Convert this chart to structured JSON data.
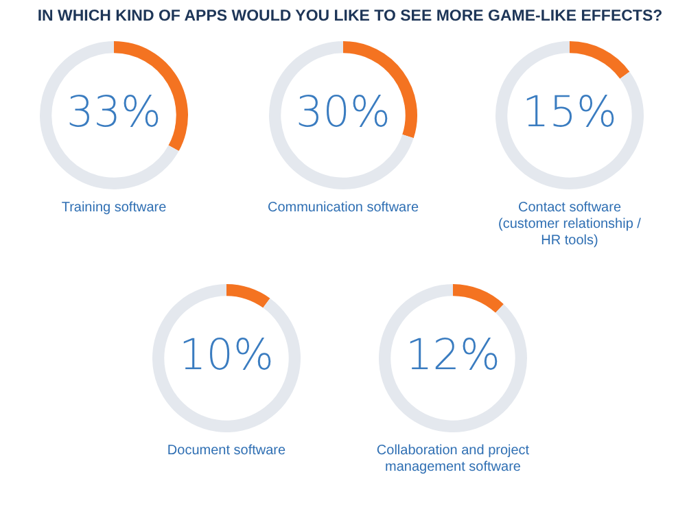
{
  "chart_data": [
    {
      "type": "other",
      "title": "IN WHICH KIND OF APPS WOULD YOU LIKE TO SEE MORE GAME-LIKE EFFECTS?"
    },
    {
      "type": "donut",
      "title": "Training software",
      "categories": [
        null,
        null
      ],
      "values": [
        33,
        67
      ],
      "colors": [
        "#f47321",
        "#e4e8ee"
      ],
      "value_labels": [
        "33%",
        null
      ]
    },
    {
      "type": "donut",
      "title": "Communication software",
      "categories": [
        null,
        null
      ],
      "values": [
        30,
        70
      ],
      "colors": [
        "#f47321",
        "#e4e8ee"
      ],
      "value_labels": [
        "30%",
        null
      ]
    },
    {
      "type": "donut",
      "title": "Contact software (customer relationship / HR tools)",
      "categories": [
        null,
        null
      ],
      "values": [
        15,
        85
      ],
      "colors": [
        "#f47321",
        "#e4e8ee"
      ],
      "value_labels": [
        "15%",
        null
      ]
    },
    {
      "type": "donut",
      "title": "Document software",
      "categories": [
        null,
        null
      ],
      "values": [
        10,
        90
      ],
      "colors": [
        "#f47321",
        "#e4e8ee"
      ],
      "value_labels": [
        "10%",
        null
      ]
    },
    {
      "type": "donut",
      "title": "Collaboration and project management software",
      "categories": [
        null,
        null
      ],
      "values": [
        12,
        88
      ],
      "colors": [
        "#f47321",
        "#e4e8ee"
      ],
      "value_labels": [
        "12%",
        null
      ]
    }
  ]
}
